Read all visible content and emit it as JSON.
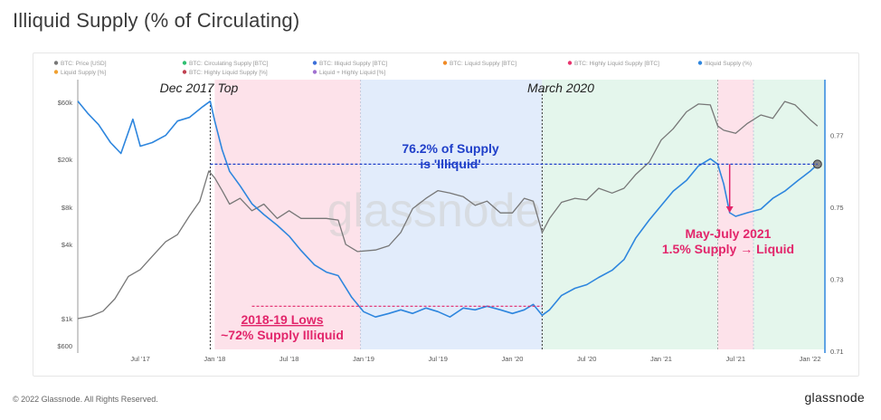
{
  "page": {
    "title": "Illiquid Supply (% of Circulating)",
    "footer": "© 2022 Glassnode. All Rights Reserved.",
    "brand": "glassnode",
    "watermark": "glassnode"
  },
  "chart_data": {
    "type": "line",
    "title": "Illiquid Supply (% of Circulating)",
    "legend": [
      {
        "name": "BTC: Price [USD]",
        "color": "#777777"
      },
      {
        "name": "BTC: Circulating Supply [BTC]",
        "color": "#2fbf71"
      },
      {
        "name": "BTC: Illiquid Supply [BTC]",
        "color": "#3b6fd8"
      },
      {
        "name": "BTC: Liquid Supply [BTC]",
        "color": "#f08a24"
      },
      {
        "name": "BTC: Highly Liquid Supply [BTC]",
        "color": "#e8336d"
      },
      {
        "name": "Illiquid Supply (%)",
        "color": "#2e86de"
      },
      {
        "name": "Liquid Supply [%]",
        "color": "#f0a030"
      },
      {
        "name": "BTC: Highly Liquid Supply [%]",
        "color": "#c04050"
      },
      {
        "name": "Liquid + Highly Liquid [%]",
        "color": "#a070d0"
      }
    ],
    "x_ticks": [
      "Jul '17",
      "Jan '18",
      "Jul '18",
      "Jan '19",
      "Jul '19",
      "Jan '20",
      "Jul '20",
      "Jan '21",
      "Jul '21",
      "Jan '22"
    ],
    "x_tick_values": [
      2017.5,
      2018.0,
      2018.5,
      2019.0,
      2019.5,
      2020.0,
      2020.5,
      2021.0,
      2021.5,
      2022.0
    ],
    "x_range": [
      2017.08,
      2022.1
    ],
    "y_left_ticks": [
      "$60k",
      "$20k",
      "$8k",
      "$4k",
      "$1k",
      "$600"
    ],
    "y_left_values": [
      60000,
      20000,
      8000,
      4000,
      1000,
      600
    ],
    "y_left_range": [
      600,
      60000
    ],
    "y_left_scale": "log",
    "y_right_ticks": [
      "0.77",
      "0.75",
      "0.73",
      "0.71"
    ],
    "y_right_values": [
      0.77,
      0.75,
      0.73,
      0.71
    ],
    "y_right_range": [
      0.7105,
      0.7855
    ],
    "series": [
      {
        "name": "BTC: Price [USD]",
        "axis": "left",
        "color": "#777777",
        "points": [
          [
            2017.08,
            1000
          ],
          [
            2017.17,
            1050
          ],
          [
            2017.25,
            1150
          ],
          [
            2017.33,
            1450
          ],
          [
            2017.42,
            2200
          ],
          [
            2017.5,
            2500
          ],
          [
            2017.58,
            3200
          ],
          [
            2017.67,
            4200
          ],
          [
            2017.75,
            4800
          ],
          [
            2017.83,
            6800
          ],
          [
            2017.9,
            9000
          ],
          [
            2017.96,
            16000
          ],
          [
            2018.0,
            14000
          ],
          [
            2018.05,
            11000
          ],
          [
            2018.1,
            8500
          ],
          [
            2018.17,
            9500
          ],
          [
            2018.25,
            7500
          ],
          [
            2018.33,
            8500
          ],
          [
            2018.42,
            6500
          ],
          [
            2018.5,
            7500
          ],
          [
            2018.58,
            6500
          ],
          [
            2018.67,
            6500
          ],
          [
            2018.75,
            6500
          ],
          [
            2018.83,
            6300
          ],
          [
            2018.88,
            4000
          ],
          [
            2018.96,
            3500
          ],
          [
            2019.08,
            3600
          ],
          [
            2019.17,
            3900
          ],
          [
            2019.25,
            5000
          ],
          [
            2019.33,
            7800
          ],
          [
            2019.42,
            9500
          ],
          [
            2019.5,
            11000
          ],
          [
            2019.58,
            10500
          ],
          [
            2019.67,
            9800
          ],
          [
            2019.75,
            8300
          ],
          [
            2019.83,
            9000
          ],
          [
            2019.92,
            7200
          ],
          [
            2020.0,
            7200
          ],
          [
            2020.08,
            9500
          ],
          [
            2020.14,
            9000
          ],
          [
            2020.2,
            5000
          ],
          [
            2020.25,
            6500
          ],
          [
            2020.33,
            8800
          ],
          [
            2020.42,
            9500
          ],
          [
            2020.5,
            9200
          ],
          [
            2020.58,
            11500
          ],
          [
            2020.67,
            10500
          ],
          [
            2020.75,
            11500
          ],
          [
            2020.83,
            15000
          ],
          [
            2020.92,
            19000
          ],
          [
            2021.0,
            29000
          ],
          [
            2021.08,
            36000
          ],
          [
            2021.17,
            50000
          ],
          [
            2021.25,
            58000
          ],
          [
            2021.33,
            57000
          ],
          [
            2021.38,
            38000
          ],
          [
            2021.42,
            35000
          ],
          [
            2021.5,
            33000
          ],
          [
            2021.58,
            40000
          ],
          [
            2021.67,
            47000
          ],
          [
            2021.75,
            44000
          ],
          [
            2021.83,
            61000
          ],
          [
            2021.9,
            57000
          ],
          [
            2022.0,
            43000
          ],
          [
            2022.05,
            38000
          ]
        ]
      },
      {
        "name": "Illiquid Supply (%)",
        "axis": "right",
        "color": "#2e86de",
        "points": [
          [
            2017.08,
            0.7795
          ],
          [
            2017.15,
            0.776
          ],
          [
            2017.22,
            0.773
          ],
          [
            2017.3,
            0.768
          ],
          [
            2017.37,
            0.765
          ],
          [
            2017.45,
            0.7745
          ],
          [
            2017.5,
            0.767
          ],
          [
            2017.58,
            0.768
          ],
          [
            2017.67,
            0.77
          ],
          [
            2017.75,
            0.774
          ],
          [
            2017.83,
            0.775
          ],
          [
            2017.92,
            0.778
          ],
          [
            2017.97,
            0.7795
          ],
          [
            2018.0,
            0.774
          ],
          [
            2018.05,
            0.766
          ],
          [
            2018.1,
            0.76
          ],
          [
            2018.17,
            0.756
          ],
          [
            2018.25,
            0.751
          ],
          [
            2018.33,
            0.748
          ],
          [
            2018.42,
            0.745
          ],
          [
            2018.5,
            0.742
          ],
          [
            2018.58,
            0.738
          ],
          [
            2018.67,
            0.734
          ],
          [
            2018.75,
            0.732
          ],
          [
            2018.83,
            0.731
          ],
          [
            2018.92,
            0.725
          ],
          [
            2019.0,
            0.721
          ],
          [
            2019.08,
            0.7195
          ],
          [
            2019.17,
            0.7205
          ],
          [
            2019.25,
            0.7215
          ],
          [
            2019.33,
            0.7205
          ],
          [
            2019.42,
            0.722
          ],
          [
            2019.5,
            0.721
          ],
          [
            2019.58,
            0.7195
          ],
          [
            2019.67,
            0.722
          ],
          [
            2019.75,
            0.7215
          ],
          [
            2019.83,
            0.7225
          ],
          [
            2019.92,
            0.7215
          ],
          [
            2020.0,
            0.7205
          ],
          [
            2020.08,
            0.7215
          ],
          [
            2020.14,
            0.723
          ],
          [
            2020.2,
            0.72
          ],
          [
            2020.25,
            0.7215
          ],
          [
            2020.33,
            0.7255
          ],
          [
            2020.42,
            0.7275
          ],
          [
            2020.5,
            0.7285
          ],
          [
            2020.58,
            0.7305
          ],
          [
            2020.67,
            0.7325
          ],
          [
            2020.75,
            0.7355
          ],
          [
            2020.83,
            0.7415
          ],
          [
            2020.92,
            0.7465
          ],
          [
            2021.0,
            0.7505
          ],
          [
            2021.08,
            0.7545
          ],
          [
            2021.17,
            0.7575
          ],
          [
            2021.25,
            0.7615
          ],
          [
            2021.33,
            0.7635
          ],
          [
            2021.38,
            0.762
          ],
          [
            2021.42,
            0.7565
          ],
          [
            2021.46,
            0.7485
          ],
          [
            2021.5,
            0.7475
          ],
          [
            2021.58,
            0.7485
          ],
          [
            2021.67,
            0.7495
          ],
          [
            2021.75,
            0.7525
          ],
          [
            2021.83,
            0.7545
          ],
          [
            2021.92,
            0.7575
          ],
          [
            2022.0,
            0.76
          ],
          [
            2022.05,
            0.762
          ]
        ]
      }
    ],
    "shaded_regions": [
      {
        "from": 2018.0,
        "to": 2018.98,
        "color": "#fde2ea"
      },
      {
        "from": 2018.98,
        "to": 2020.2,
        "color": "#e2ecfb"
      },
      {
        "from": 2020.2,
        "to": 2021.38,
        "color": "#e4f6ec"
      },
      {
        "from": 2021.38,
        "to": 2021.62,
        "color": "#fde2ea"
      },
      {
        "from": 2021.62,
        "to": 2022.1,
        "color": "#e4f6ec"
      }
    ],
    "vertical_lines": [
      {
        "x": 2017.97,
        "label": "Dec 2017 Top"
      },
      {
        "x": 2020.2,
        "label": "March 2020"
      }
    ],
    "annotations": [
      {
        "id": "supply_762",
        "lines": [
          "76.2% of Supply",
          "is 'Illiquid'"
        ],
        "color": "#1f3fc9",
        "y_right": 0.762
      },
      {
        "id": "lows",
        "lines": [
          "2018-19 Lows",
          "~72% Supply Illiquid"
        ],
        "color": "#e2266b",
        "y_right": 0.7225
      },
      {
        "id": "mayjuly",
        "lines": [
          "May-July 2021",
          "1.5% Supply → Liquid"
        ],
        "color": "#e2266b"
      }
    ]
  }
}
